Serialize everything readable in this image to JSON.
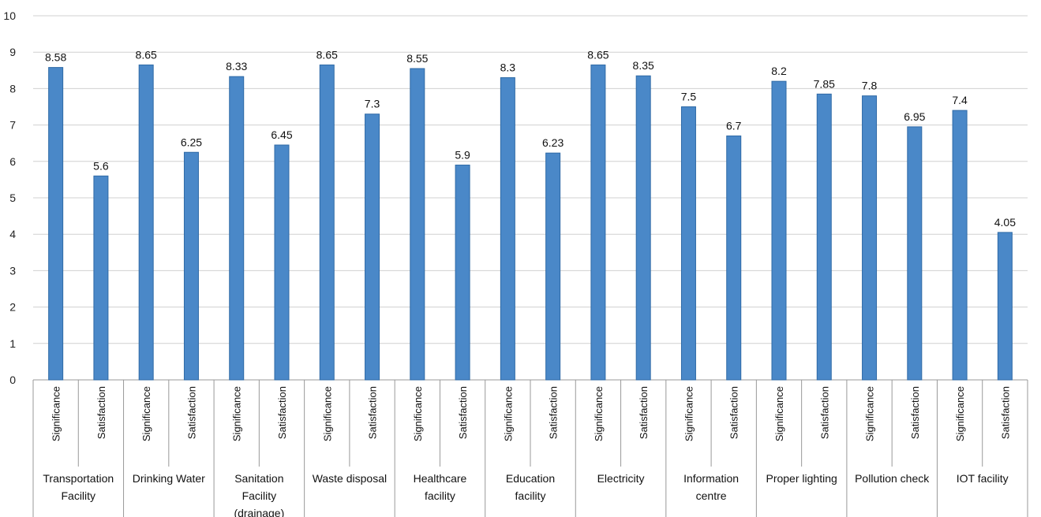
{
  "chart_data": {
    "type": "bar",
    "title": "",
    "xlabel": "",
    "ylabel": "",
    "ylim": [
      0,
      10
    ],
    "yticks": [
      0,
      1,
      2,
      3,
      4,
      5,
      6,
      7,
      8,
      9,
      10
    ],
    "grid": true,
    "colors": {
      "bar": "#4a88c8",
      "bar_edge": "#2f6aa6",
      "grid": "#d0d0d0",
      "axis": "#999999"
    },
    "groups": [
      {
        "name": [
          "Transportation",
          "Facility"
        ],
        "bars": [
          {
            "label": "Significance",
            "value": 8.58
          },
          {
            "label": "Satisfaction",
            "value": 5.6
          }
        ]
      },
      {
        "name": [
          "Drinking Water"
        ],
        "bars": [
          {
            "label": "Significance",
            "value": 8.65
          },
          {
            "label": "Satisfaction",
            "value": 6.25
          }
        ]
      },
      {
        "name": [
          "Sanitation",
          "Facility",
          "(drainage)"
        ],
        "bars": [
          {
            "label": "Significance",
            "value": 8.33
          },
          {
            "label": "Satisfaction",
            "value": 6.45
          }
        ]
      },
      {
        "name": [
          "Waste disposal"
        ],
        "bars": [
          {
            "label": "Significance",
            "value": 8.65
          },
          {
            "label": "Satisfaction",
            "value": 7.3
          }
        ]
      },
      {
        "name": [
          "Healthcare",
          "facility"
        ],
        "bars": [
          {
            "label": "Significance",
            "value": 8.55
          },
          {
            "label": "Satisfaction",
            "value": 5.9
          }
        ]
      },
      {
        "name": [
          "Education",
          "facility"
        ],
        "bars": [
          {
            "label": "Significance",
            "value": 8.3
          },
          {
            "label": "Satisfaction",
            "value": 6.23
          }
        ]
      },
      {
        "name": [
          "Electricity"
        ],
        "bars": [
          {
            "label": "Significance",
            "value": 8.65
          },
          {
            "label": "Satisfaction",
            "value": 8.35
          }
        ]
      },
      {
        "name": [
          "Information",
          "centre"
        ],
        "bars": [
          {
            "label": "Significance",
            "value": 7.5
          },
          {
            "label": "Satisfaction",
            "value": 6.7
          }
        ]
      },
      {
        "name": [
          "Proper lighting"
        ],
        "bars": [
          {
            "label": "Significance",
            "value": 8.2
          },
          {
            "label": "Satisfaction",
            "value": 7.85
          }
        ]
      },
      {
        "name": [
          "Pollution check"
        ],
        "bars": [
          {
            "label": "Significance",
            "value": 7.8
          },
          {
            "label": "Satisfaction",
            "value": 6.95
          }
        ]
      },
      {
        "name": [
          "IOT facility"
        ],
        "bars": [
          {
            "label": "Significance",
            "value": 7.4
          },
          {
            "label": "Satisfaction",
            "value": 4.05
          }
        ]
      }
    ]
  }
}
